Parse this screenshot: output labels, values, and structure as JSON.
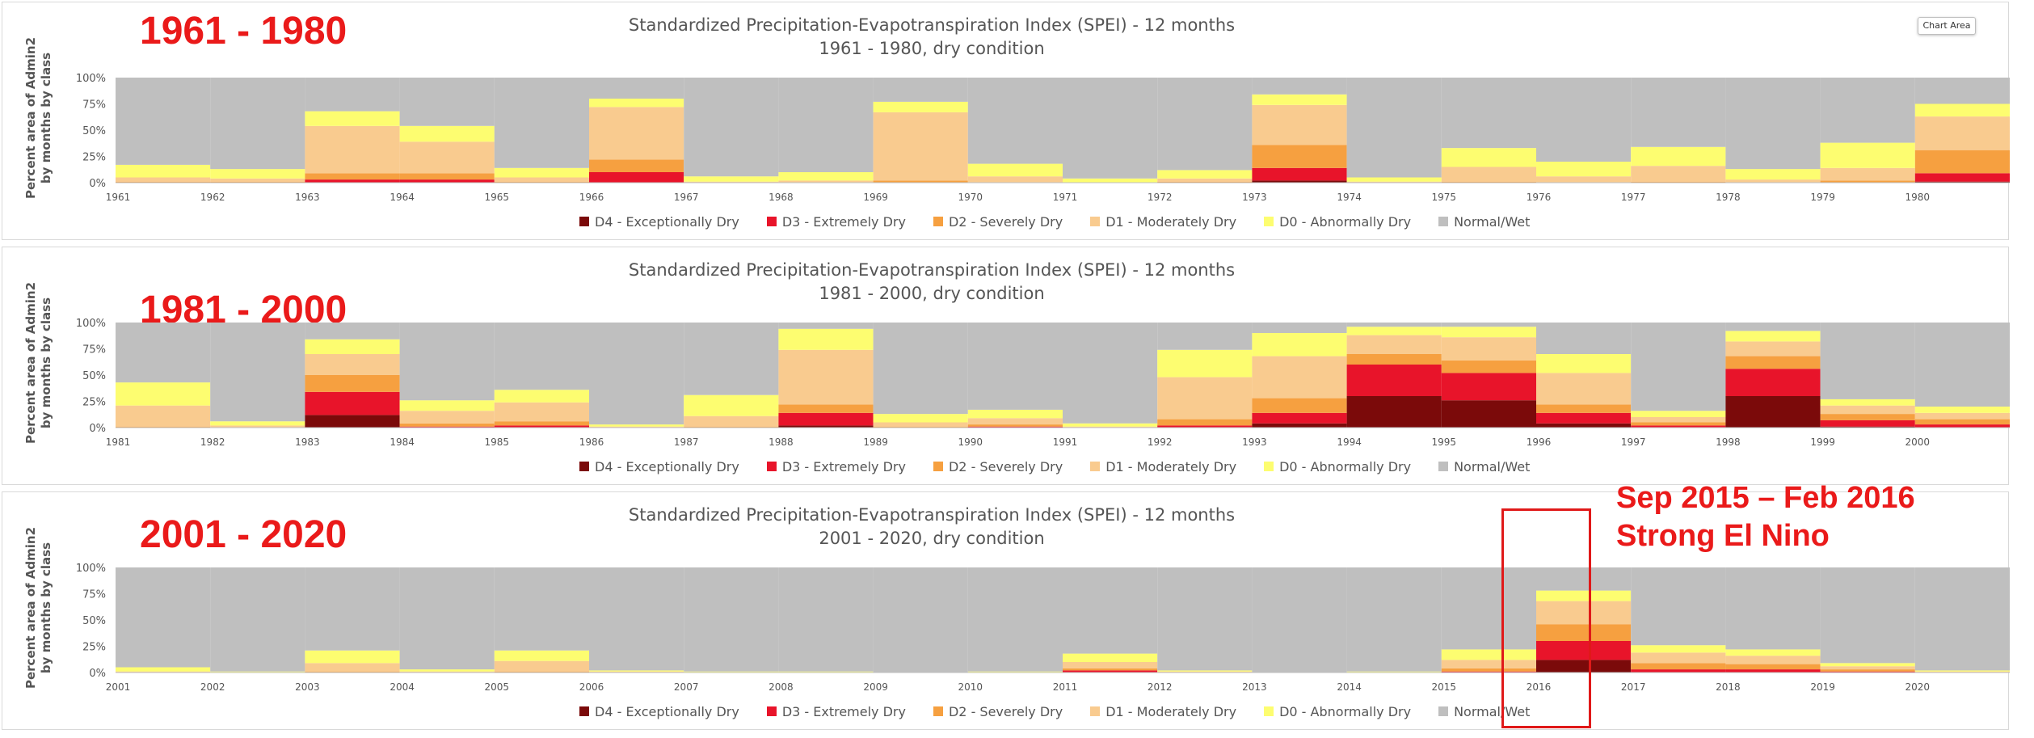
{
  "chart_area_label": "Chart Area",
  "annotation": {
    "line1": "Sep 2015 – Feb 2016",
    "line2": "Strong El Nino"
  },
  "chart_data": [
    {
      "type": "area",
      "stacked": true,
      "period_label": "1961 - 1980",
      "title": "Standardized Precipitation-Evapotranspiration Index (SPEI) - 12 months",
      "subtitle": "1961 - 1980, dry condition",
      "ylabel": "Percent area of Admin2\nby months by class",
      "ylim": [
        0,
        100
      ],
      "yticks": [
        "0%",
        "25%",
        "50%",
        "75%",
        "100%"
      ],
      "x_start_year": 1961,
      "x_end_year": 1980,
      "x": [
        "1961",
        "1962",
        "1963",
        "1964",
        "1965",
        "1966",
        "1967",
        "1968",
        "1969",
        "1970",
        "1971",
        "1972",
        "1973",
        "1974",
        "1975",
        "1976",
        "1977",
        "1978",
        "1979",
        "1980"
      ],
      "legend_position": "bottom",
      "series": [
        {
          "name": "D4 - Exceptionally Dry",
          "color": "#7b0a0a",
          "values": [
            0,
            0,
            0,
            0,
            0,
            0,
            0,
            0,
            0,
            0,
            0,
            0,
            2,
            0,
            0,
            0,
            0,
            0,
            0,
            1
          ]
        },
        {
          "name": "D3 - Extremely Dry",
          "color": "#e8142a",
          "values": [
            0,
            0,
            3,
            3,
            0,
            10,
            0,
            0,
            0,
            0,
            0,
            0,
            12,
            0,
            0,
            0,
            0,
            0,
            0,
            8
          ]
        },
        {
          "name": "D2 - Severely Dry",
          "color": "#f6a040",
          "values": [
            1,
            1,
            6,
            6,
            1,
            12,
            0,
            0,
            2,
            0,
            0,
            1,
            22,
            0,
            1,
            0,
            1,
            0,
            2,
            22
          ]
        },
        {
          "name": "D1 - Moderately Dry",
          "color": "#f9cb8f",
          "values": [
            4,
            3,
            45,
            30,
            4,
            50,
            1,
            2,
            65,
            6,
            0,
            3,
            38,
            1,
            14,
            6,
            15,
            3,
            12,
            32
          ]
        },
        {
          "name": "D0 - Abnormally Dry",
          "color": "#fdfd70",
          "values": [
            12,
            9,
            14,
            15,
            9,
            8,
            5,
            8,
            10,
            12,
            4,
            8,
            10,
            4,
            18,
            14,
            18,
            10,
            24,
            12
          ]
        },
        {
          "name": "Normal/Wet",
          "color": "#bfbfbf",
          "values": [
            83,
            87,
            32,
            46,
            86,
            20,
            94,
            90,
            23,
            82,
            96,
            88,
            16,
            95,
            67,
            80,
            66,
            87,
            62,
            25
          ]
        }
      ]
    },
    {
      "type": "area",
      "stacked": true,
      "period_label": "1981 - 2000",
      "title": "Standardized Precipitation-Evapotranspiration Index (SPEI) - 12 months",
      "subtitle": "1981 - 2000, dry condition",
      "ylabel": "Percent area of Admin2\nby months by class",
      "ylim": [
        0,
        100
      ],
      "yticks": [
        "0%",
        "25%",
        "50%",
        "75%",
        "100%"
      ],
      "x_start_year": 1981,
      "x_end_year": 2000,
      "x": [
        "1981",
        "1982",
        "1983",
        "1984",
        "1985",
        "1986",
        "1987",
        "1988",
        "1989",
        "1990",
        "1991",
        "1992",
        "1993",
        "1994",
        "1995",
        "1996",
        "1997",
        "1998",
        "1999",
        "2000"
      ],
      "legend_position": "bottom",
      "series": [
        {
          "name": "D4 - Exceptionally Dry",
          "color": "#7b0a0a",
          "values": [
            0,
            0,
            12,
            0,
            0,
            0,
            0,
            2,
            0,
            0,
            0,
            0,
            4,
            30,
            26,
            4,
            0,
            30,
            1,
            0
          ]
        },
        {
          "name": "D3 - Extremely Dry",
          "color": "#e8142a",
          "values": [
            0,
            0,
            22,
            1,
            2,
            0,
            0,
            12,
            0,
            1,
            0,
            2,
            10,
            30,
            26,
            10,
            2,
            26,
            6,
            3
          ]
        },
        {
          "name": "D2 - Severely Dry",
          "color": "#f6a040",
          "values": [
            1,
            0,
            16,
            3,
            4,
            0,
            1,
            8,
            1,
            2,
            0,
            6,
            14,
            10,
            12,
            8,
            3,
            12,
            6,
            5
          ]
        },
        {
          "name": "D1 - Moderately Dry",
          "color": "#f9cb8f",
          "values": [
            20,
            2,
            20,
            12,
            18,
            1,
            10,
            52,
            4,
            6,
            1,
            40,
            40,
            18,
            22,
            30,
            5,
            14,
            8,
            6
          ]
        },
        {
          "name": "D0 - Abnormally Dry",
          "color": "#fdfd70",
          "values": [
            22,
            4,
            14,
            10,
            12,
            2,
            20,
            20,
            8,
            8,
            3,
            26,
            22,
            8,
            10,
            18,
            6,
            10,
            6,
            6
          ]
        },
        {
          "name": "Normal/Wet",
          "color": "#bfbfbf",
          "values": [
            57,
            94,
            16,
            74,
            64,
            97,
            69,
            6,
            87,
            83,
            96,
            26,
            10,
            4,
            4,
            30,
            84,
            8,
            73,
            80
          ]
        }
      ]
    },
    {
      "type": "area",
      "stacked": true,
      "period_label": "2001 - 2020",
      "title": "Standardized Precipitation-Evapotranspiration Index (SPEI) - 12 months",
      "subtitle": "2001 - 2020, dry condition",
      "ylabel": "Percent area of Admin2\nby months by class",
      "ylim": [
        0,
        100
      ],
      "yticks": [
        "0%",
        "25%",
        "50%",
        "75%",
        "100%"
      ],
      "x_start_year": 2001,
      "x_end_year": 2020,
      "x": [
        "2001",
        "2002",
        "2003",
        "2004",
        "2005",
        "2006",
        "2007",
        "2008",
        "2009",
        "2010",
        "2011",
        "2012",
        "2013",
        "2014",
        "2015",
        "2016",
        "2017",
        "2018",
        "2019",
        "2020"
      ],
      "legend_position": "bottom",
      "series": [
        {
          "name": "D4 - Exceptionally Dry",
          "color": "#7b0a0a",
          "values": [
            0,
            0,
            0,
            0,
            0,
            0,
            0,
            0,
            0,
            0,
            0,
            0,
            0,
            0,
            0,
            12,
            0,
            0,
            0,
            0
          ]
        },
        {
          "name": "D3 - Extremely Dry",
          "color": "#e8142a",
          "values": [
            0,
            0,
            0,
            0,
            0,
            0,
            0,
            0,
            0,
            0,
            2,
            0,
            0,
            0,
            1,
            18,
            3,
            3,
            1,
            0
          ]
        },
        {
          "name": "D2 - Severely Dry",
          "color": "#f6a040",
          "values": [
            0,
            0,
            1,
            0,
            1,
            0,
            0,
            0,
            0,
            0,
            2,
            0,
            0,
            0,
            3,
            16,
            6,
            5,
            2,
            0
          ]
        },
        {
          "name": "D1 - Moderately Dry",
          "color": "#f9cb8f",
          "values": [
            1,
            0,
            8,
            1,
            10,
            1,
            0,
            0,
            0,
            0,
            6,
            1,
            0,
            0,
            8,
            22,
            10,
            8,
            3,
            1
          ]
        },
        {
          "name": "D0 - Abnormally Dry",
          "color": "#fdfd70",
          "values": [
            4,
            1,
            12,
            2,
            10,
            1,
            1,
            1,
            0,
            1,
            8,
            1,
            0,
            1,
            10,
            10,
            7,
            6,
            3,
            1
          ]
        },
        {
          "name": "Normal/Wet",
          "color": "#bfbfbf",
          "values": [
            95,
            99,
            79,
            97,
            79,
            98,
            99,
            99,
            100,
            99,
            82,
            98,
            100,
            99,
            78,
            22,
            74,
            78,
            91,
            98
          ]
        }
      ]
    }
  ]
}
